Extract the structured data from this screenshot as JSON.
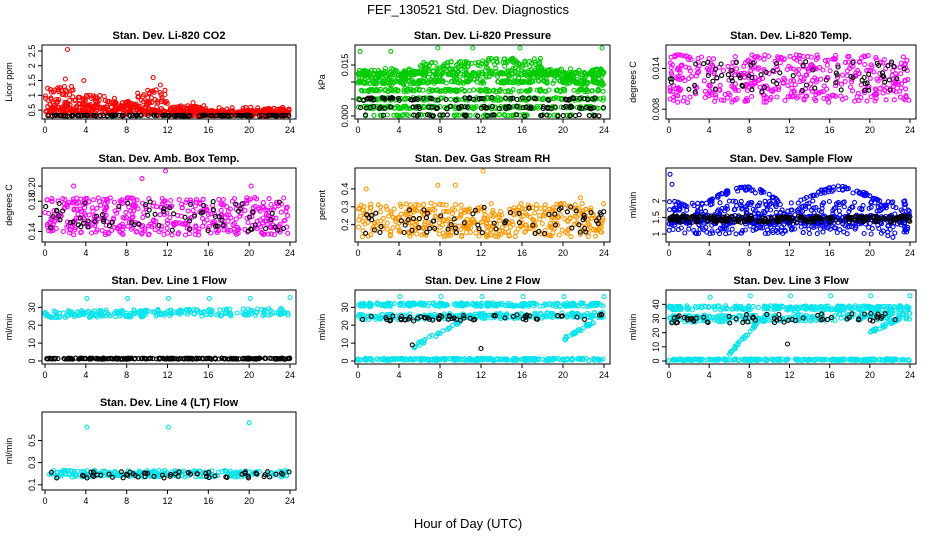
{
  "page": {
    "title": "FEF_130521  Std. Dev. Diagnostics",
    "xlabel": "Hour of Day (UTC)"
  },
  "chart_data": [
    {
      "type": "scatter",
      "title": "Stan. Dev. Li-820 CO2",
      "ylabel": "Licor ppm",
      "xticks": [
        "0",
        "4",
        "8",
        "12",
        "16",
        "20",
        "24"
      ],
      "yticks": [
        0.5,
        1.0,
        1.5,
        2.0,
        2.5
      ],
      "xlim": [
        0,
        24
      ],
      "ylim": [
        0.3,
        2.6
      ],
      "series": [
        {
          "color": "#ff0000",
          "bands": [
            [
              0.3,
              0.6,
              "flat"
            ]
          ],
          "outliers": [
            [
              2.2,
              2.55
            ],
            [
              2.0,
              1.55
            ],
            [
              2.6,
              1.3
            ],
            [
              3.8,
              1.5
            ],
            [
              4.4,
              1.0
            ],
            [
              10.6,
              1.6
            ],
            [
              11.3,
              1.35
            ],
            [
              6.8,
              0.9
            ],
            [
              14.5,
              0.75
            ],
            [
              23.5,
              0.45
            ]
          ],
          "cloud": [
            [
              0,
              3,
              0.4,
              1.3
            ],
            [
              3,
              6,
              0.4,
              1.0
            ],
            [
              6,
              9,
              0.35,
              0.8
            ],
            [
              9,
              12,
              0.4,
              1.2
            ],
            [
              12,
              16,
              0.3,
              0.65
            ],
            [
              16,
              24,
              0.3,
              0.5
            ]
          ]
        },
        {
          "color": "#000000",
          "bands": [
            [
              0.28,
              0.33,
              "flat"
            ]
          ]
        }
      ]
    },
    {
      "type": "scatter",
      "title": "Stan. Dev. Li-820 Pressure",
      "ylabel": "kPa",
      "xticks": [
        "0",
        "4",
        "8",
        "12",
        "16",
        "20",
        "24"
      ],
      "yticks": [
        0.0,
        0.005,
        0.01,
        0.015
      ],
      "ytick_labels": [
        "0.000",
        "",
        "",
        "0.015"
      ],
      "xlim": [
        0,
        24
      ],
      "ylim": [
        0,
        0.02
      ],
      "series": [
        {
          "color": "#00cc00",
          "levels": [
            0.0,
            0.0025,
            0.005,
            0.0075,
            0.01,
            0.0125
          ],
          "cloud": [
            [
              0,
              6,
              0.009,
              0.014
            ],
            [
              6,
              12,
              0.01,
              0.016
            ],
            [
              12,
              18,
              0.011,
              0.017
            ],
            [
              18,
              24,
              0.009,
              0.014
            ]
          ],
          "outliers": [
            [
              0.2,
              0.019
            ],
            [
              3.2,
              0.019
            ],
            [
              7.8,
              0.02
            ],
            [
              11.2,
              0.02
            ],
            [
              15.8,
              0.02
            ],
            [
              23.8,
              0.02
            ]
          ]
        },
        {
          "color": "#000000",
          "levels": [
            0.0,
            0.0025,
            0.005
          ]
        }
      ]
    },
    {
      "type": "scatter",
      "title": "Stan. Dev. Li-820 Temp.",
      "ylabel": "degrees C",
      "xticks": [
        "0",
        "4",
        "8",
        "12",
        "16",
        "20",
        "24"
      ],
      "yticks": [
        0.008,
        0.014
      ],
      "xlim": [
        0,
        24
      ],
      "ylim": [
        0.007,
        0.017
      ],
      "series": [
        {
          "color": "#ff00ff",
          "cloud": [
            [
              0,
              24,
              0.009,
              0.016
            ]
          ]
        },
        {
          "color": "#000000",
          "cloud": [
            [
              0,
              24,
              0.0105,
              0.015
            ]
          ],
          "sparse": true
        }
      ]
    },
    {
      "type": "scatter",
      "title": "Stan. Dev. Amb. Box Temp.",
      "ylabel": "degrees C",
      "xticks": [
        "0",
        "4",
        "8",
        "12",
        "16",
        "20",
        "24"
      ],
      "yticks": [
        0.14,
        0.16,
        0.18,
        0.2
      ],
      "ytick_labels": [
        "0.14",
        "",
        "0.18",
        "0.20"
      ],
      "xlim": [
        0,
        24
      ],
      "ylim": [
        0.13,
        0.22
      ],
      "series": [
        {
          "color": "#ff00ff",
          "cloud": [
            [
              0,
              24,
              0.135,
              0.185
            ]
          ],
          "outliers": [
            [
              2.8,
              0.2
            ],
            [
              9.5,
              0.21
            ],
            [
              11.8,
              0.22
            ],
            [
              20.2,
              0.2
            ]
          ]
        },
        {
          "color": "#000000",
          "cloud": [
            [
              0,
              24,
              0.14,
              0.18
            ]
          ],
          "sparse": true
        }
      ]
    },
    {
      "type": "scatter",
      "title": "Stan. Dev. Gas Stream RH",
      "ylabel": "percent",
      "xticks": [
        "0",
        "4",
        "8",
        "12",
        "16",
        "20",
        "24"
      ],
      "yticks": [
        0.2,
        0.3,
        0.4
      ],
      "xlim": [
        0,
        24
      ],
      "ylim": [
        0.12,
        0.5
      ],
      "series": [
        {
          "color": "#ff9900",
          "cloud": [
            [
              0,
              24,
              0.13,
              0.32
            ]
          ],
          "outliers": [
            [
              0.8,
              0.4
            ],
            [
              7.8,
              0.42
            ],
            [
              9.5,
              0.42
            ],
            [
              12.2,
              0.5
            ],
            [
              21.7,
              0.35
            ]
          ]
        },
        {
          "color": "#000000",
          "cloud": [
            [
              0,
              24,
              0.15,
              0.3
            ]
          ],
          "sparse": true
        }
      ]
    },
    {
      "type": "scatter",
      "title": "Stan. Dev. Sample Flow",
      "ylabel": "ml/min",
      "xticks": [
        "0",
        "4",
        "8",
        "12",
        "16",
        "20",
        "24"
      ],
      "yticks": [
        1.0,
        1.5,
        2.0
      ],
      "xlim": [
        0,
        24
      ],
      "ylim": [
        0.85,
        2.9
      ],
      "series": [
        {
          "color": "#0000ff",
          "bands": [
            [
              1.3,
              1.55,
              "flat"
            ]
          ],
          "cloud": [
            [
              0,
              24,
              1.0,
              2.0
            ]
          ],
          "hump": [
            [
              4,
              11,
              2.0,
              2.45
            ],
            [
              13,
              21,
              2.0,
              2.45
            ]
          ],
          "outliers": [
            [
              0.1,
              2.8
            ],
            [
              0.3,
              2.5
            ],
            [
              21.8,
              0.95
            ],
            [
              22.3,
              0.9
            ]
          ]
        },
        {
          "color": "#000000",
          "bands": [
            [
              1.35,
              1.55,
              "flat"
            ]
          ]
        }
      ]
    },
    {
      "type": "scatter",
      "title": "Stan. Dev. Line 1 Flow",
      "ylabel": "ml/min",
      "xticks": [
        "0",
        "4",
        "8",
        "12",
        "16",
        "20",
        "24"
      ],
      "yticks": [
        0,
        10,
        20,
        30
      ],
      "xlim": [
        0,
        24
      ],
      "ylim": [
        0,
        38
      ],
      "series": [
        {
          "color": "#00e5ee",
          "bands": [
            [
              24,
              28,
              "rising"
            ]
          ],
          "outliers": [
            [
              4.1,
              35
            ],
            [
              8.1,
              35
            ],
            [
              12.1,
              35
            ],
            [
              16.1,
              35
            ],
            [
              20.1,
              35
            ],
            [
              24.0,
              35.5
            ]
          ]
        },
        {
          "color": "#000000",
          "bands": [
            [
              1,
              1.6,
              "flat"
            ]
          ]
        }
      ]
    },
    {
      "type": "scatter",
      "title": "Stan. Dev. Line 2 Flow",
      "ylabel": "ml/min",
      "xticks": [
        "0",
        "4",
        "8",
        "12",
        "16",
        "20",
        "24"
      ],
      "yticks": [
        0,
        10,
        20,
        30
      ],
      "xlim": [
        0,
        24
      ],
      "ylim": [
        0,
        38
      ],
      "series": [
        {
          "color": "#00e5ee",
          "bands": [
            [
              30.5,
              32.5,
              "flat"
            ],
            [
              0.3,
              1.5,
              "flat"
            ],
            [
              23,
              26,
              "rising"
            ]
          ],
          "dip": [
            [
              5.5,
              10,
              8,
              22
            ],
            [
              20,
              23,
              12,
              22
            ]
          ],
          "outliers": [
            [
              4.1,
              36
            ],
            [
              8.1,
              36
            ],
            [
              12.1,
              36
            ],
            [
              16.1,
              36
            ],
            [
              20.1,
              36
            ],
            [
              24.0,
              36
            ]
          ]
        },
        {
          "color": "#000000",
          "bands": [
            [
              22,
              25,
              "rising"
            ]
          ],
          "sparse": true,
          "outliers": [
            [
              5.3,
              9
            ],
            [
              12.0,
              7
            ]
          ]
        }
      ]
    },
    {
      "type": "scatter",
      "title": "Stan. Dev. Line 3 Flow",
      "ylabel": "ml/min",
      "xticks": [
        "0",
        "4",
        "8",
        "12",
        "16",
        "20",
        "24"
      ],
      "yticks": [
        0,
        10,
        20,
        30,
        40
      ],
      "xlim": [
        0,
        24
      ],
      "ylim": [
        0,
        48
      ],
      "series": [
        {
          "color": "#00e5ee",
          "bands": [
            [
              36,
              39,
              "flat"
            ],
            [
              0.3,
              1.5,
              "flat"
            ],
            [
              27,
              32,
              "rising"
            ]
          ],
          "dip": [
            [
              6,
              9,
              5,
              28
            ],
            [
              20,
              23,
              20,
              30
            ]
          ],
          "outliers": [
            [
              4.1,
              45
            ],
            [
              8.1,
              46
            ],
            [
              12.1,
              46
            ],
            [
              16.1,
              46
            ],
            [
              20.1,
              46
            ],
            [
              24.0,
              46
            ]
          ]
        },
        {
          "color": "#000000",
          "bands": [
            [
              26,
              32,
              "rising"
            ]
          ],
          "sparse": true,
          "outliers": [
            [
              11.8,
              12
            ]
          ]
        }
      ]
    },
    {
      "type": "scatter",
      "title": "Stan. Dev. Line 4 (LT) Flow",
      "ylabel": "ml/min",
      "xticks": [
        "0",
        "4",
        "8",
        "12",
        "16",
        "20",
        "24"
      ],
      "yticks": [
        0.1,
        0.3,
        0.5
      ],
      "xlim": [
        0,
        24
      ],
      "ylim": [
        0.08,
        0.73
      ],
      "series": [
        {
          "color": "#00e5ee",
          "bands": [
            [
              0.17,
              0.23,
              "flat"
            ]
          ],
          "outliers": [
            [
              4.1,
              0.62
            ],
            [
              12.1,
              0.62
            ],
            [
              20.0,
              0.66
            ]
          ]
        },
        {
          "color": "#000000",
          "bands": [
            [
              0.16,
              0.22,
              "flat"
            ]
          ],
          "sparse": true
        }
      ]
    }
  ]
}
